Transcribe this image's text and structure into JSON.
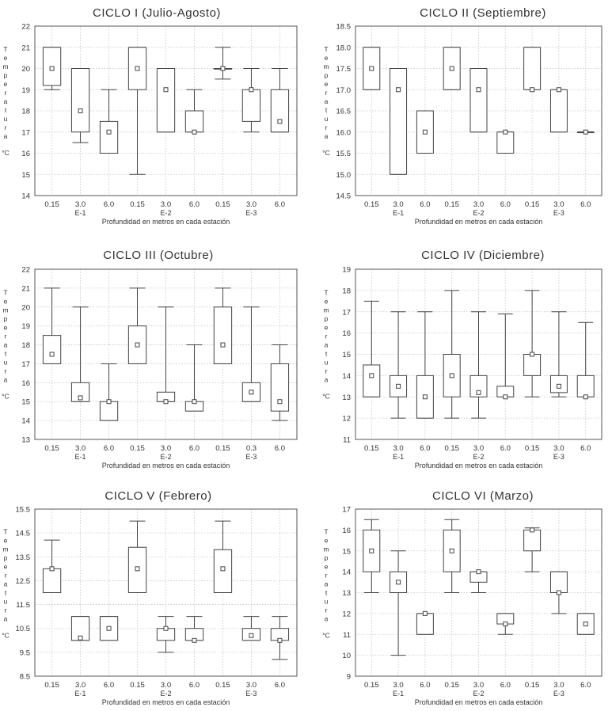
{
  "chart_data": [
    {
      "type": "box",
      "title": "CICLO I (Julio-Agosto)",
      "ylabel_chars": [
        "T",
        "e",
        "m",
        "p",
        "e",
        "r",
        "a",
        "t",
        "u",
        "r",
        "a"
      ],
      "yunit": "°C",
      "xlabel": "Profundidad en metros en cada estación",
      "x_tick_labels": [
        "0.15",
        "3.0",
        "6.0",
        "0.15",
        "3.0",
        "6.0",
        "0.15",
        "3.0",
        "6.0"
      ],
      "station_labels": [
        "E-1",
        "E-2",
        "E-3"
      ],
      "ylim": [
        14,
        22
      ],
      "yticks": [
        14,
        15,
        16,
        17,
        18,
        19,
        20,
        21,
        22
      ],
      "ytick_labels": [
        "14",
        "15",
        "16",
        "17",
        "18",
        "19",
        "20",
        "21",
        "22"
      ],
      "boxes": [
        {
          "min": 19,
          "q1": 19.2,
          "median": 20,
          "q3": 21,
          "max": 21
        },
        {
          "min": 16.5,
          "q1": 17,
          "median": 18,
          "q3": 20,
          "max": 20
        },
        {
          "min": 16,
          "q1": 16,
          "median": 17,
          "q3": 17.5,
          "max": 19
        },
        {
          "min": 15,
          "q1": 19,
          "median": 20,
          "q3": 21,
          "max": 21
        },
        {
          "min": 17,
          "q1": 17,
          "median": 19,
          "q3": 20,
          "max": 20
        },
        {
          "min": 17,
          "q1": 17,
          "median": 17,
          "q3": 18,
          "max": 19
        },
        {
          "min": 19.5,
          "q1": 20,
          "median": 20,
          "q3": 20,
          "max": 21
        },
        {
          "min": 17,
          "q1": 17.5,
          "median": 19,
          "q3": 19,
          "max": 20
        },
        {
          "min": 17,
          "q1": 17,
          "median": 17.5,
          "q3": 19,
          "max": 20
        }
      ]
    },
    {
      "type": "box",
      "title": "CICLO II (Septiembre)",
      "ylabel_chars": [
        "T",
        "e",
        "m",
        "p",
        "e",
        "r",
        "a",
        "t",
        "u",
        "r",
        "a"
      ],
      "yunit": "°C",
      "xlabel": "Profundidad en metros en cada estación",
      "x_tick_labels": [
        "0.15",
        "3.0",
        "6.0",
        "0.15",
        "3.0",
        "6.0",
        "0.15",
        "3.0",
        "6.0"
      ],
      "station_labels": [
        "E-1",
        "E-2",
        "E-3"
      ],
      "ylim": [
        14.5,
        18.5
      ],
      "yticks": [
        14.5,
        15,
        15.5,
        16,
        16.5,
        17,
        17.5,
        18,
        18.5
      ],
      "ytick_labels": [
        "14.5",
        "15.0",
        "15.5",
        "16.0",
        "16.5",
        "17.0",
        "17.5",
        "18.0",
        "18.5"
      ],
      "boxes": [
        {
          "min": 17,
          "q1": 17,
          "median": 17.5,
          "q3": 18,
          "max": 18
        },
        {
          "min": 15,
          "q1": 15,
          "median": 17,
          "q3": 17.5,
          "max": 17.5
        },
        {
          "min": 15.5,
          "q1": 15.5,
          "median": 16,
          "q3": 16.5,
          "max": 16.5
        },
        {
          "min": 17,
          "q1": 17,
          "median": 17.5,
          "q3": 18,
          "max": 18
        },
        {
          "min": 16,
          "q1": 16,
          "median": 17,
          "q3": 17.5,
          "max": 17.5
        },
        {
          "min": 15.5,
          "q1": 15.5,
          "median": 16,
          "q3": 16,
          "max": 16
        },
        {
          "min": 17,
          "q1": 17,
          "median": 17,
          "q3": 18,
          "max": 18
        },
        {
          "min": 16,
          "q1": 16,
          "median": 17,
          "q3": 17,
          "max": 17
        },
        {
          "min": 16,
          "q1": 16,
          "median": 16,
          "q3": 16,
          "max": 16
        }
      ]
    },
    {
      "type": "box",
      "title": "CICLO III (Octubre)",
      "ylabel_chars": [
        "T",
        "e",
        "m",
        "p",
        "e",
        "r",
        "a",
        "t",
        "u",
        "r",
        "a"
      ],
      "yunit": "°C",
      "xlabel": "Profundidad en metros en cada estación",
      "x_tick_labels": [
        "0.15",
        "3.0",
        "6.0",
        "0.15",
        "3.0",
        "6.0",
        "0.15",
        "0.3",
        "6.0"
      ],
      "station_labels": [
        "E-1",
        "E-2",
        "E-3"
      ],
      "ylim": [
        13,
        22
      ],
      "yticks": [
        13,
        14,
        15,
        16,
        17,
        18,
        19,
        20,
        21,
        22
      ],
      "ytick_labels": [
        "13",
        "14",
        "15",
        "16",
        "17",
        "18",
        "19",
        "20",
        "21",
        "22"
      ],
      "boxes": [
        {
          "min": 17,
          "q1": 17,
          "median": 17.5,
          "q3": 18.5,
          "max": 21
        },
        {
          "min": 15,
          "q1": 15,
          "median": 15.2,
          "q3": 16,
          "max": 20
        },
        {
          "min": 14,
          "q1": 14,
          "median": 15,
          "q3": 15,
          "max": 17
        },
        {
          "min": 17,
          "q1": 17,
          "median": 18,
          "q3": 19,
          "max": 21
        },
        {
          "min": 15,
          "q1": 15,
          "median": 15,
          "q3": 15.5,
          "max": 20
        },
        {
          "min": 14.5,
          "q1": 14.5,
          "median": 15,
          "q3": 15,
          "max": 18
        },
        {
          "min": 17,
          "q1": 17,
          "median": 18,
          "q3": 20,
          "max": 21
        },
        {
          "min": 15,
          "q1": 15,
          "median": 15.5,
          "q3": 16,
          "max": 20
        },
        {
          "min": 14,
          "q1": 14.5,
          "median": 15,
          "q3": 17,
          "max": 18
        }
      ]
    },
    {
      "type": "box",
      "title": "CICLO IV (Diciembre)",
      "ylabel_chars": [
        "T",
        "e",
        "m",
        "p",
        "e",
        "r",
        "a",
        "t",
        "u",
        "r",
        "a"
      ],
      "yunit": "°C",
      "xlabel": "Profundidad en metros en cada estación",
      "x_tick_labels": [
        "0.15",
        "3.0",
        "6.0",
        "0.15",
        "3.0",
        "6.0",
        "0.15",
        "3.0",
        "6.0"
      ],
      "station_labels": [
        "E-1",
        "E-2",
        "E-3"
      ],
      "ylim": [
        11,
        19
      ],
      "yticks": [
        11,
        12,
        13,
        14,
        15,
        16,
        17,
        18,
        19
      ],
      "ytick_labels": [
        "11",
        "12",
        "13",
        "14",
        "15",
        "16",
        "17",
        "18",
        "19"
      ],
      "boxes": [
        {
          "min": 13,
          "q1": 13,
          "median": 14,
          "q3": 14.5,
          "max": 17.5
        },
        {
          "min": 12,
          "q1": 13,
          "median": 13.5,
          "q3": 14,
          "max": 17
        },
        {
          "min": 12,
          "q1": 12,
          "median": 13,
          "q3": 14,
          "max": 17
        },
        {
          "min": 12,
          "q1": 13,
          "median": 14,
          "q3": 15,
          "max": 18
        },
        {
          "min": 12,
          "q1": 13,
          "median": 13.2,
          "q3": 14,
          "max": 17
        },
        {
          "min": 13,
          "q1": 13,
          "median": 13,
          "q3": 13.5,
          "max": 16.9
        },
        {
          "min": 13,
          "q1": 14,
          "median": 15,
          "q3": 15,
          "max": 18
        },
        {
          "min": 13,
          "q1": 13.2,
          "median": 13.5,
          "q3": 14,
          "max": 17
        },
        {
          "min": 13,
          "q1": 13,
          "median": 13,
          "q3": 14,
          "max": 16.5
        }
      ]
    },
    {
      "type": "box",
      "title": "CICLO V (Febrero)",
      "ylabel_chars": [
        "T",
        "e",
        "m",
        "p",
        "e",
        "r",
        "a",
        "t",
        "u",
        "r",
        "a"
      ],
      "yunit": "°C",
      "xlabel": "Profundidad en metros en cada estación",
      "x_tick_labels": [
        "0.15",
        "3.0",
        "6.0",
        "0.15",
        "3.0",
        "6.0",
        "0.15",
        "3.0",
        "6.0"
      ],
      "station_labels": [
        "E-1",
        "E-2",
        "E-3"
      ],
      "ylim": [
        8.5,
        15.5
      ],
      "yticks": [
        8.5,
        9.5,
        10.5,
        11.5,
        12.5,
        13.5,
        14.5,
        15.5
      ],
      "ytick_labels": [
        "8.5",
        "9.5",
        "10.5",
        "11.5",
        "12.5",
        "13.5",
        "14.5",
        "15.5"
      ],
      "boxes": [
        {
          "min": 12,
          "q1": 12,
          "median": 13,
          "q3": 13,
          "max": 14.2
        },
        {
          "min": 10,
          "q1": 10,
          "median": 10.1,
          "q3": 11,
          "max": 11
        },
        {
          "min": 10,
          "q1": 10,
          "median": 10.5,
          "q3": 11,
          "max": 11
        },
        {
          "min": 12,
          "q1": 12,
          "median": 13,
          "q3": 13.9,
          "max": 15
        },
        {
          "min": 9.5,
          "q1": 10,
          "median": 10.5,
          "q3": 10.5,
          "max": 11
        },
        {
          "min": 10,
          "q1": 10,
          "median": 10,
          "q3": 10.5,
          "max": 11
        },
        {
          "min": 12,
          "q1": 12,
          "median": 13,
          "q3": 13.8,
          "max": 15
        },
        {
          "min": 10,
          "q1": 10,
          "median": 10.2,
          "q3": 10.5,
          "max": 11
        },
        {
          "min": 9.2,
          "q1": 10,
          "median": 10,
          "q3": 10.5,
          "max": 11
        }
      ]
    },
    {
      "type": "box",
      "title": "CICLO VI (Marzo)",
      "ylabel_chars": [
        "T",
        "e",
        "m",
        "p",
        "e",
        "r",
        "a",
        "t",
        "u",
        "r",
        "a"
      ],
      "yunit": "°C",
      "xlabel": "Profundidad en metros en cada estación",
      "x_tick_labels": [
        "0.15",
        "3.0",
        "6.0",
        "0.15",
        "3.0",
        "6.0",
        "0.15",
        "3.0",
        "6.0"
      ],
      "station_labels": [
        "E-1",
        "E-2",
        "E-3"
      ],
      "ylim": [
        9,
        17
      ],
      "yticks": [
        9,
        10,
        11,
        12,
        13,
        14,
        15,
        16,
        17
      ],
      "ytick_labels": [
        "9",
        "10",
        "11",
        "12",
        "13",
        "14",
        "15",
        "16",
        "17"
      ],
      "boxes": [
        {
          "min": 13,
          "q1": 14,
          "median": 15,
          "q3": 16,
          "max": 16.5
        },
        {
          "min": 10,
          "q1": 13,
          "median": 13.5,
          "q3": 14,
          "max": 15
        },
        {
          "min": 11,
          "q1": 11,
          "median": 12,
          "q3": 12,
          "max": 12
        },
        {
          "min": 13,
          "q1": 14,
          "median": 15,
          "q3": 16,
          "max": 16.5
        },
        {
          "min": 13,
          "q1": 13.5,
          "median": 14,
          "q3": 14,
          "max": 14
        },
        {
          "min": 11,
          "q1": 11.5,
          "median": 11.5,
          "q3": 12,
          "max": 12
        },
        {
          "min": 14,
          "q1": 15,
          "median": 16,
          "q3": 16,
          "max": 16.1
        },
        {
          "min": 12,
          "q1": 13,
          "median": 13,
          "q3": 14,
          "max": 14
        },
        {
          "min": 11,
          "q1": 11,
          "median": 11.5,
          "q3": 12,
          "max": 12
        }
      ]
    }
  ]
}
